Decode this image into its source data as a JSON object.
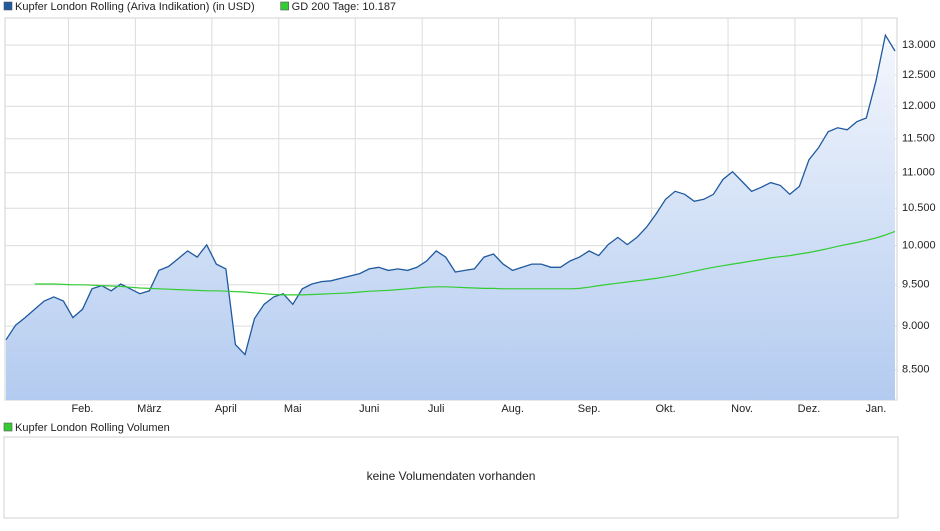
{
  "chart_data": {
    "type": "line",
    "ylog": true,
    "grid": true,
    "ylim": [
      8170,
      13470
    ],
    "yticks": [
      {
        "value": 8500,
        "label": "8.500"
      },
      {
        "value": 9000,
        "label": "9.000"
      },
      {
        "value": 9500,
        "label": "9.500"
      },
      {
        "value": 10000,
        "label": "10.000"
      },
      {
        "value": 10500,
        "label": "10.500"
      },
      {
        "value": 11000,
        "label": "11.000"
      },
      {
        "value": 11500,
        "label": "11.500"
      },
      {
        "value": 12000,
        "label": "12.000"
      },
      {
        "value": 12500,
        "label": "12.500"
      },
      {
        "value": 13000,
        "label": "13.000"
      }
    ],
    "categories": [
      null,
      null,
      null,
      null,
      null,
      null,
      null,
      null,
      "Feb.",
      null,
      null,
      null,
      null,
      null,
      null,
      "März",
      null,
      null,
      null,
      null,
      null,
      null,
      null,
      "April",
      null,
      null,
      null,
      null,
      null,
      null,
      "Mai",
      null,
      null,
      null,
      null,
      null,
      null,
      null,
      "Juni",
      null,
      null,
      null,
      null,
      null,
      null,
      "Juli",
      null,
      null,
      null,
      null,
      null,
      null,
      null,
      "Aug.",
      null,
      null,
      null,
      null,
      null,
      null,
      null,
      "Sep.",
      null,
      null,
      null,
      null,
      null,
      null,
      null,
      "Okt.",
      null,
      null,
      null,
      null,
      null,
      null,
      null,
      "Nov.",
      null,
      null,
      null,
      null,
      null,
      null,
      "Dez.",
      null,
      null,
      null,
      null,
      null,
      null,
      "Jan.",
      null,
      null
    ],
    "series": [
      {
        "name": "Kupfer London Rolling (Ariva Indikation) (in USD)",
        "color": "#1f5a9e",
        "values": [
          8840,
          9010,
          9100,
          9200,
          9300,
          9350,
          9300,
          9100,
          9200,
          9450,
          9490,
          9425,
          9510,
          9450,
          9390,
          9425,
          9680,
          9730,
          9830,
          9930,
          9850,
          10010,
          9760,
          9700,
          8785,
          8670,
          9090,
          9260,
          9350,
          9390,
          9260,
          9450,
          9510,
          9540,
          9550,
          9580,
          9610,
          9640,
          9700,
          9720,
          9680,
          9700,
          9680,
          9720,
          9800,
          9930,
          9850,
          9660,
          9680,
          9700,
          9850,
          9890,
          9760,
          9680,
          9720,
          9760,
          9760,
          9720,
          9720,
          9800,
          9850,
          9930,
          9870,
          10013,
          10108,
          10013,
          10108,
          10243,
          10420,
          10625,
          10736,
          10694,
          10597,
          10625,
          10694,
          10903,
          11015,
          10875,
          10736,
          10792,
          10860,
          10820,
          10694,
          10805,
          11190,
          11365,
          11606,
          11667,
          11636,
          11760,
          11818,
          12400,
          13170,
          12900
        ]
      },
      {
        "name": "GD 200 Tage: 10.187",
        "color": "#33cc33",
        "values": [
          null,
          null,
          null,
          9510,
          9510,
          9510,
          9505,
          9500,
          9500,
          9495,
          9490,
          9485,
          9480,
          9470,
          9460,
          9455,
          9450,
          9445,
          9440,
          9435,
          9430,
          9425,
          9425,
          9420,
          9415,
          9410,
          9400,
          9390,
          9380,
          9375,
          9375,
          9375,
          9380,
          9385,
          9390,
          9395,
          9400,
          9410,
          9420,
          9425,
          9430,
          9440,
          9450,
          9460,
          9470,
          9475,
          9475,
          9470,
          9465,
          9460,
          9455,
          9455,
          9450,
          9450,
          9450,
          9450,
          9450,
          9450,
          9450,
          9450,
          9455,
          9470,
          9490,
          9505,
          9520,
          9535,
          9550,
          9565,
          9580,
          9600,
          9620,
          9645,
          9670,
          9695,
          9720,
          9740,
          9760,
          9780,
          9800,
          9820,
          9840,
          9855,
          9870,
          9890,
          9910,
          9935,
          9960,
          9990,
          10015,
          10040,
          10070,
          10100,
          10140,
          10187
        ]
      }
    ]
  },
  "volume_panel": {
    "legend": "Kupfer London Rolling Volumen",
    "color": "#33cc33",
    "message": "keine Volumendaten vorhanden"
  }
}
